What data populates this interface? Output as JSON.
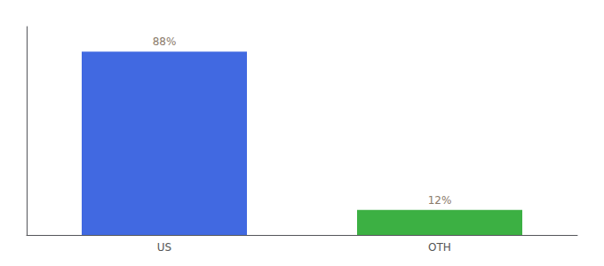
{
  "chart_data": {
    "type": "bar",
    "categories": [
      "US",
      "OTH"
    ],
    "values": [
      88,
      12
    ],
    "value_labels": [
      "88%",
      "12%"
    ],
    "colors": [
      "#4169e1",
      "#3cb043"
    ],
    "ylim": [
      0,
      100
    ],
    "grid": false,
    "data_labels": true,
    "tick_labels": "x"
  }
}
